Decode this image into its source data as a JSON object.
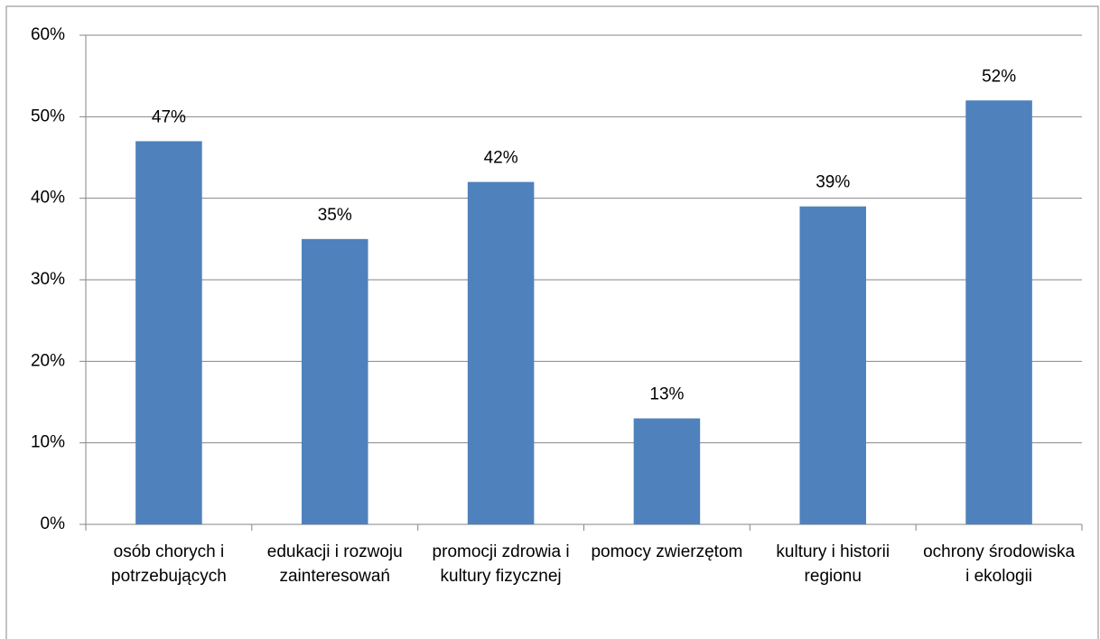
{
  "chart_data": {
    "type": "bar",
    "categories": [
      "osób chorych i potrzebujących",
      "edukacji i rozwoju zainteresowań",
      "promocji zdrowia i kultury fizycznej",
      "pomocy zwierzętom",
      "kultury i historii regionu",
      "ochrony środowiska i ekologii"
    ],
    "values": [
      47,
      35,
      42,
      13,
      39,
      52
    ],
    "value_labels": [
      "47%",
      "35%",
      "42%",
      "13%",
      "39%",
      "52%"
    ],
    "color": "#4f81bd",
    "ylim": [
      0,
      60
    ],
    "yticks": [
      {
        "value": 0,
        "label": "0%"
      },
      {
        "value": 10,
        "label": "10%"
      },
      {
        "value": 20,
        "label": "20%"
      },
      {
        "value": 30,
        "label": "30%"
      },
      {
        "value": 40,
        "label": "40%"
      },
      {
        "value": 50,
        "label": "50%"
      },
      {
        "value": 60,
        "label": "60%"
      }
    ],
    "grid": true
  }
}
